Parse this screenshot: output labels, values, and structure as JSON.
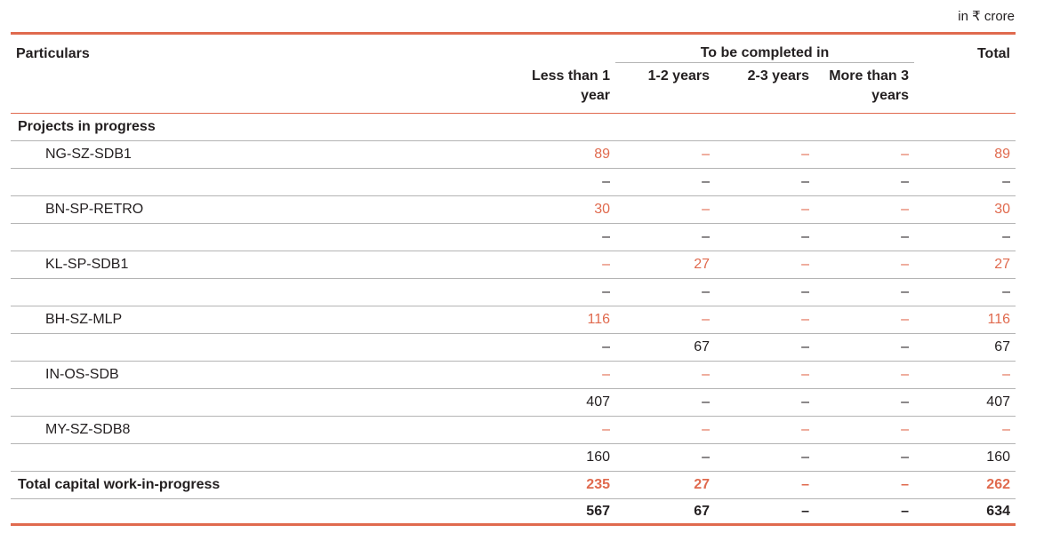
{
  "unit_note": "in ₹ crore",
  "header": {
    "particulars": "Particulars",
    "group": "To be completed in",
    "total": "Total",
    "columns": [
      "Less than 1 year",
      "1-2 years",
      "2-3 years",
      "More than 3 years"
    ]
  },
  "section": "Projects in progress",
  "rows": [
    {
      "label": "NG-SZ-SDB1",
      "values": [
        "89",
        "–",
        "–",
        "–",
        "89"
      ],
      "highlight": true
    },
    {
      "label": "",
      "values": [
        "–",
        "–",
        "–",
        "–",
        "–"
      ],
      "highlight": false
    },
    {
      "label": "BN-SP-RETRO",
      "values": [
        "30",
        "–",
        "–",
        "–",
        "30"
      ],
      "highlight": true
    },
    {
      "label": "",
      "values": [
        "–",
        "–",
        "–",
        "–",
        "–"
      ],
      "highlight": false
    },
    {
      "label": "KL-SP-SDB1",
      "values": [
        "–",
        "27",
        "–",
        "–",
        "27"
      ],
      "highlight": true
    },
    {
      "label": "",
      "values": [
        "–",
        "–",
        "–",
        "–",
        "–"
      ],
      "highlight": false
    },
    {
      "label": "BH-SZ-MLP",
      "values": [
        "116",
        "–",
        "–",
        "–",
        "116"
      ],
      "highlight": true
    },
    {
      "label": "",
      "values": [
        "–",
        "67",
        "–",
        "–",
        "67"
      ],
      "highlight": false
    },
    {
      "label": "IN-OS-SDB",
      "values": [
        "–",
        "–",
        "–",
        "–",
        "–"
      ],
      "highlight": true
    },
    {
      "label": "",
      "values": [
        "407",
        "–",
        "–",
        "–",
        "407"
      ],
      "highlight": false
    },
    {
      "label": "MY-SZ-SDB8",
      "values": [
        "–",
        "–",
        "–",
        "–",
        "–"
      ],
      "highlight": true
    },
    {
      "label": "",
      "values": [
        "160",
        "–",
        "–",
        "–",
        "160"
      ],
      "highlight": false
    }
  ],
  "total": {
    "label": "Total capital work-in-progress",
    "current": [
      "235",
      "27",
      "–",
      "–",
      "262"
    ],
    "previous": [
      "567",
      "67",
      "–",
      "–",
      "634"
    ]
  },
  "colors": {
    "accent": "#e06a4e",
    "text": "#231f20",
    "rule": "#b4b4b4"
  }
}
